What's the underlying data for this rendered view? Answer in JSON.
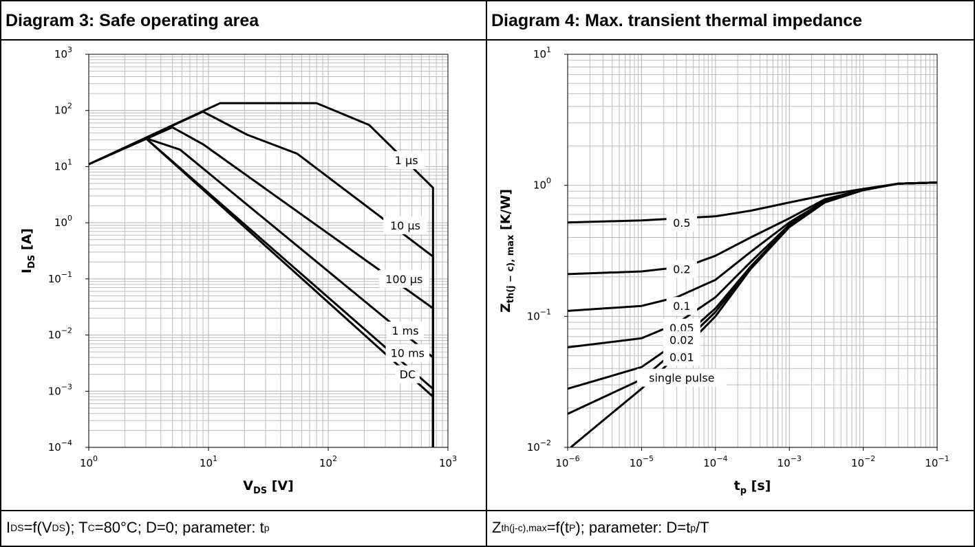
{
  "panels": [
    {
      "header": "Diagram 3: Safe operating area",
      "caption": [
        {
          "t": "I"
        },
        {
          "t": "DS",
          "sub": true
        },
        {
          "t": "=f(V"
        },
        {
          "t": "DS",
          "sub": true
        },
        {
          "t": "); T"
        },
        {
          "t": "C",
          "sub": true
        },
        {
          "t": "=80°C; D=0; parameter: t"
        },
        {
          "t": "p",
          "sub": true
        }
      ]
    },
    {
      "header": "Diagram 4: Max. transient thermal impedance",
      "caption": [
        {
          "t": "Z"
        },
        {
          "t": "th(j-c),max",
          "sub": true
        },
        {
          "t": "=f(t"
        },
        {
          "t": "P",
          "sub": true
        },
        {
          "t": "); parameter: D=t"
        },
        {
          "t": "p",
          "sub": true
        },
        {
          "t": "/T"
        }
      ]
    }
  ],
  "chart_data": [
    {
      "type": "line",
      "xscale": "log",
      "yscale": "log",
      "xlim": [
        1,
        1000
      ],
      "ylim": [
        0.0001,
        1000
      ],
      "xlabel": {
        "main": "V",
        "sub": "DS",
        "unit": " [V]"
      },
      "ylabel": {
        "main": "I",
        "sub": "DS",
        "unit": " [A]"
      },
      "xticks": [
        {
          "value": 1,
          "base": "10",
          "exp": "0"
        },
        {
          "value": 10,
          "base": "10",
          "exp": "1"
        },
        {
          "value": 100,
          "base": "10",
          "exp": "2"
        },
        {
          "value": 1000,
          "base": "10",
          "exp": "3"
        }
      ],
      "yticks": [
        {
          "value": 0.0001,
          "base": "10",
          "exp": "−4"
        },
        {
          "value": 0.001,
          "base": "10",
          "exp": "−3"
        },
        {
          "value": 0.01,
          "base": "10",
          "exp": "−2"
        },
        {
          "value": 0.1,
          "base": "10",
          "exp": "−1"
        },
        {
          "value": 1,
          "base": "10",
          "exp": "0"
        },
        {
          "value": 10,
          "base": "10",
          "exp": "1"
        },
        {
          "value": 100,
          "base": "10",
          "exp": "2"
        },
        {
          "value": 1000,
          "base": "10",
          "exp": "3"
        }
      ],
      "grid": true,
      "series": [
        {
          "name": "1 µs",
          "label_at": [
            450,
            13
          ],
          "points": [
            [
              1,
              11
            ],
            [
              12.5,
              135
            ],
            [
              80,
              135
            ],
            [
              220,
              55
            ],
            [
              750,
              4.2
            ],
            [
              750,
              0.0001
            ]
          ]
        },
        {
          "name": "10 µs",
          "label_at": [
            440,
            0.9
          ],
          "points": [
            [
              1,
              11
            ],
            [
              9,
              95
            ],
            [
              21,
              37
            ],
            [
              55,
              17
            ],
            [
              750,
              0.25
            ],
            [
              750,
              0.0001
            ]
          ]
        },
        {
          "name": "100 µs",
          "label_at": [
            430,
            0.1
          ],
          "points": [
            [
              1,
              11
            ],
            [
              5,
              50
            ],
            [
              9,
              25
            ],
            [
              750,
              0.03
            ],
            [
              750,
              0.0001
            ]
          ]
        },
        {
          "name": "1 ms",
          "label_at": [
            440,
            0.012
          ],
          "points": [
            [
              1,
              11
            ],
            [
              3,
              32
            ],
            [
              5.8,
              20
            ],
            [
              750,
              0.004
            ],
            [
              750,
              0.0001
            ]
          ]
        },
        {
          "name": "10 ms",
          "label_at": [
            460,
            0.0048
          ],
          "points": [
            [
              3,
              32
            ],
            [
              750,
              0.0011
            ],
            [
              750,
              0.0001
            ]
          ]
        },
        {
          "name": "DC",
          "label_at": [
            460,
            0.002
          ],
          "points": [
            [
              3,
              32
            ],
            [
              750,
              0.0008
            ],
            [
              750,
              0.0001
            ]
          ]
        }
      ]
    },
    {
      "type": "line",
      "xscale": "log",
      "yscale": "log",
      "xlim": [
        1e-06,
        0.1
      ],
      "ylim": [
        0.01,
        10
      ],
      "xlabel": {
        "main": "t",
        "sub": "p",
        "unit": " [s]"
      },
      "ylabel": {
        "main": "Z",
        "sub": "th(j − c), max",
        "unit": " [K/W]"
      },
      "xticks": [
        {
          "value": 1e-06,
          "base": "10",
          "exp": "−6"
        },
        {
          "value": 1e-05,
          "base": "10",
          "exp": "−5"
        },
        {
          "value": 0.0001,
          "base": "10",
          "exp": "−4"
        },
        {
          "value": 0.001,
          "base": "10",
          "exp": "−3"
        },
        {
          "value": 0.01,
          "base": "10",
          "exp": "−2"
        },
        {
          "value": 0.1,
          "base": "10",
          "exp": "−1"
        }
      ],
      "yticks": [
        {
          "value": 0.01,
          "base": "10",
          "exp": "−2"
        },
        {
          "value": 0.1,
          "base": "10",
          "exp": "−1"
        },
        {
          "value": 1,
          "base": "10",
          "exp": "0"
        },
        {
          "value": 10,
          "base": "10",
          "exp": "1"
        }
      ],
      "grid": true,
      "series": [
        {
          "name": "0.5",
          "label_at": [
            3.5e-05,
            0.52
          ],
          "points": [
            [
              1e-06,
              0.52
            ],
            [
              1e-05,
              0.54
            ],
            [
              0.0001,
              0.58
            ],
            [
              0.0003,
              0.64
            ],
            [
              0.001,
              0.74
            ],
            [
              0.003,
              0.84
            ],
            [
              0.01,
              0.94
            ],
            [
              0.03,
              1.03
            ],
            [
              0.1,
              1.05
            ]
          ]
        },
        {
          "name": "0.2",
          "label_at": [
            3.5e-05,
            0.23
          ],
          "points": [
            [
              1e-06,
              0.21
            ],
            [
              1e-05,
              0.22
            ],
            [
              4e-05,
              0.24
            ],
            [
              0.0001,
              0.29
            ],
            [
              0.0003,
              0.4
            ],
            [
              0.001,
              0.56
            ],
            [
              0.003,
              0.78
            ],
            [
              0.01,
              0.93
            ],
            [
              0.03,
              1.03
            ],
            [
              0.1,
              1.05
            ]
          ]
        },
        {
          "name": "0.1",
          "label_at": [
            3.5e-05,
            0.12
          ],
          "points": [
            [
              1e-06,
              0.11
            ],
            [
              1e-05,
              0.12
            ],
            [
              3e-05,
              0.14
            ],
            [
              0.0001,
              0.19
            ],
            [
              0.0003,
              0.31
            ],
            [
              0.001,
              0.52
            ],
            [
              0.003,
              0.76
            ],
            [
              0.01,
              0.92
            ],
            [
              0.03,
              1.03
            ],
            [
              0.1,
              1.05
            ]
          ]
        },
        {
          "name": "0.05",
          "label_at": [
            3.5e-05,
            0.082
          ],
          "points": [
            [
              1e-06,
              0.058
            ],
            [
              1e-05,
              0.068
            ],
            [
              3e-05,
              0.088
            ],
            [
              0.0001,
              0.14
            ],
            [
              0.0003,
              0.26
            ],
            [
              0.001,
              0.5
            ],
            [
              0.003,
              0.75
            ],
            [
              0.01,
              0.92
            ],
            [
              0.03,
              1.03
            ],
            [
              0.1,
              1.05
            ]
          ]
        },
        {
          "name": "0.02",
          "label_at": [
            3.5e-05,
            0.066
          ],
          "points": [
            [
              1e-06,
              0.028
            ],
            [
              1e-05,
              0.041
            ],
            [
              3e-05,
              0.063
            ],
            [
              0.0001,
              0.115
            ],
            [
              0.0003,
              0.24
            ],
            [
              0.001,
              0.49
            ],
            [
              0.003,
              0.74
            ],
            [
              0.01,
              0.92
            ],
            [
              0.03,
              1.03
            ],
            [
              0.1,
              1.05
            ]
          ]
        },
        {
          "name": "0.01",
          "label_at": [
            3.5e-05,
            0.049
          ],
          "points": [
            [
              1e-06,
              0.018
            ],
            [
              1e-05,
              0.033
            ],
            [
              3e-05,
              0.056
            ],
            [
              0.0001,
              0.108
            ],
            [
              0.0003,
              0.235
            ],
            [
              0.001,
              0.48
            ],
            [
              0.003,
              0.74
            ],
            [
              0.01,
              0.92
            ],
            [
              0.03,
              1.03
            ],
            [
              0.1,
              1.05
            ]
          ]
        },
        {
          "name": "single pulse",
          "label_at": [
            3.5e-05,
            0.034
          ],
          "points": [
            [
              1.1e-06,
              0.01
            ],
            [
              3e-06,
              0.016
            ],
            [
              1e-05,
              0.028
            ],
            [
              3e-05,
              0.05
            ],
            [
              0.0001,
              0.1
            ],
            [
              0.0003,
              0.23
            ],
            [
              0.001,
              0.48
            ],
            [
              0.003,
              0.74
            ],
            [
              0.01,
              0.92
            ],
            [
              0.03,
              1.03
            ],
            [
              0.1,
              1.05
            ]
          ]
        }
      ]
    }
  ]
}
